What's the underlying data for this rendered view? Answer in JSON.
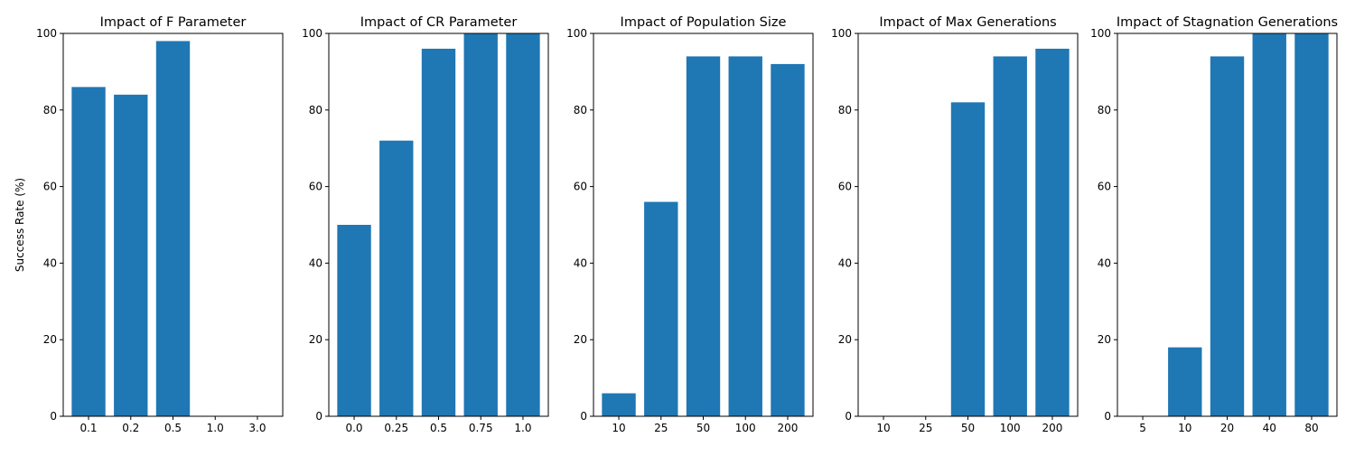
{
  "chart_data": [
    {
      "type": "bar",
      "title": "Impact of F Parameter",
      "ylabel": "Success Rate (%)",
      "categories": [
        "0.1",
        "0.2",
        "0.5",
        "1.0",
        "3.0"
      ],
      "values": [
        86,
        84,
        98,
        0,
        0
      ],
      "ylim": [
        0,
        100
      ],
      "yticks": [
        "0",
        "20",
        "40",
        "60",
        "80",
        "100"
      ],
      "grid": false,
      "bar_color": "#1f77b4"
    },
    {
      "type": "bar",
      "title": "Impact of CR Parameter",
      "ylabel": "",
      "categories": [
        "0.0",
        "0.25",
        "0.5",
        "0.75",
        "1.0"
      ],
      "values": [
        50,
        72,
        96,
        100,
        100
      ],
      "ylim": [
        0,
        100
      ],
      "yticks": [
        "0",
        "20",
        "40",
        "60",
        "80",
        "100"
      ],
      "grid": false,
      "bar_color": "#1f77b4"
    },
    {
      "type": "bar",
      "title": "Impact of Population Size",
      "ylabel": "",
      "categories": [
        "10",
        "25",
        "50",
        "100",
        "200"
      ],
      "values": [
        6,
        56,
        94,
        94,
        92
      ],
      "ylim": [
        0,
        100
      ],
      "yticks": [
        "0",
        "20",
        "40",
        "60",
        "80",
        "100"
      ],
      "grid": false,
      "bar_color": "#1f77b4"
    },
    {
      "type": "bar",
      "title": "Impact of Max Generations",
      "ylabel": "",
      "categories": [
        "10",
        "25",
        "50",
        "100",
        "200"
      ],
      "values": [
        0,
        0,
        82,
        94,
        96
      ],
      "ylim": [
        0,
        100
      ],
      "yticks": [
        "0",
        "20",
        "40",
        "60",
        "80",
        "100"
      ],
      "grid": false,
      "bar_color": "#1f77b4"
    },
    {
      "type": "bar",
      "title": "Impact of Stagnation Generations",
      "ylabel": "",
      "categories": [
        "5",
        "10",
        "20",
        "40",
        "80"
      ],
      "values": [
        0,
        18,
        94,
        100,
        100
      ],
      "ylim": [
        0,
        100
      ],
      "yticks": [
        "0",
        "20",
        "40",
        "60",
        "80",
        "100"
      ],
      "grid": false,
      "bar_color": "#1f77b4"
    }
  ]
}
